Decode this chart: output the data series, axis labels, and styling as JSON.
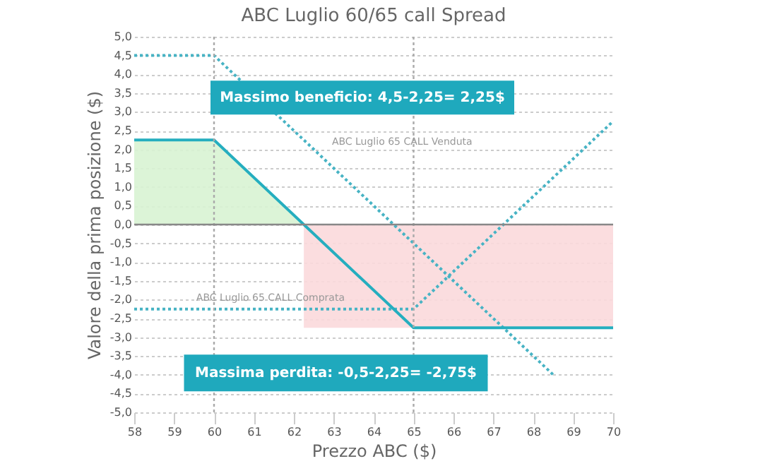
{
  "chart_data": {
    "type": "line",
    "title": "ABC Luglio 60/65 call Spread",
    "xlabel": "Prezzo ABC ($)",
    "ylabel": "Valore della prima posizione ($)",
    "xlim": [
      58,
      70
    ],
    "xticks": [
      58,
      59,
      60,
      61,
      62,
      63,
      64,
      65,
      66,
      67,
      68,
      69,
      70
    ],
    "ylim": [
      -5,
      5
    ],
    "yticks": [
      {
        "value": -5,
        "label": "-5,0"
      },
      {
        "value": -4.5,
        "label": "-4,5"
      },
      {
        "value": -4,
        "label": "-4,0"
      },
      {
        "value": -3.5,
        "label": "-3,5"
      },
      {
        "value": -3,
        "label": "-3,0"
      },
      {
        "value": -2.5,
        "label": "-2,5"
      },
      {
        "value": -2,
        "label": "-2,0"
      },
      {
        "value": -1.5,
        "label": "-1,5"
      },
      {
        "value": -1,
        "label": "-1,0"
      },
      {
        "value": -0.5,
        "label": "-0,5"
      },
      {
        "value": 0,
        "label": "0,0"
      },
      {
        "value": 0.5,
        "label": "0,5"
      },
      {
        "value": 1,
        "label": "1,0"
      },
      {
        "value": 1.5,
        "label": "1,5"
      },
      {
        "value": 2,
        "label": "2,0"
      },
      {
        "value": 2.5,
        "label": "2,5"
      },
      {
        "value": 3,
        "label": "3,0"
      },
      {
        "value": 3.5,
        "label": "3,5"
      },
      {
        "value": 4,
        "label": "4,0"
      },
      {
        "value": 4.5,
        "label": "4,5"
      },
      {
        "value": 5,
        "label": "5,0"
      }
    ],
    "grid": "y",
    "marker": "none",
    "series": [
      {
        "type": "area",
        "color": "#d8f3d3",
        "x": [
          58,
          60,
          62.25
        ],
        "values": [
          2.25,
          2.25,
          0
        ]
      },
      {
        "type": "area",
        "color": "#fbd9dc",
        "x": [
          62.25,
          70
        ],
        "values": [
          -2.75,
          -2.75
        ]
      },
      {
        "color": "#47b3c4",
        "line_style": "dotted",
        "x": [
          58,
          60,
          68.5
        ],
        "values": [
          4.5,
          4.5,
          -4.0
        ]
      },
      {
        "color": "#47b3c4",
        "line_style": "dotted",
        "x": [
          58,
          65,
          70
        ],
        "values": [
          -2.25,
          -2.25,
          2.75
        ]
      },
      {
        "color": "#25aebf",
        "line_style": "solid",
        "x": [
          58,
          60,
          65,
          70
        ],
        "values": [
          2.25,
          2.25,
          -2.75,
          -2.75
        ]
      }
    ],
    "ref_lines": [
      {
        "axis": "x",
        "value": 60,
        "color": "#aaaaaa",
        "line_style": "dotted"
      },
      {
        "axis": "x",
        "value": 65,
        "color": "#aaaaaa",
        "line_style": "dotted"
      },
      {
        "axis": "y",
        "value": 0,
        "color": "#888888",
        "line_style": "solid"
      }
    ],
    "annotations": [
      {
        "text": "ABC Luglio 65 CALL Venduta",
        "x": 62.6,
        "y": 1.9
      },
      {
        "text": "ABC Luglio 65 CALL Comprata",
        "x": 59.2,
        "y": -2.25
      },
      {
        "text": "Massimo beneficio: 4,5-2,25= 2,25$",
        "x": 60,
        "y": 2.25
      },
      {
        "text": "Massima perdita: -0,5-2,25= -2,75$",
        "x": 65,
        "y": -2.75
      }
    ]
  }
}
